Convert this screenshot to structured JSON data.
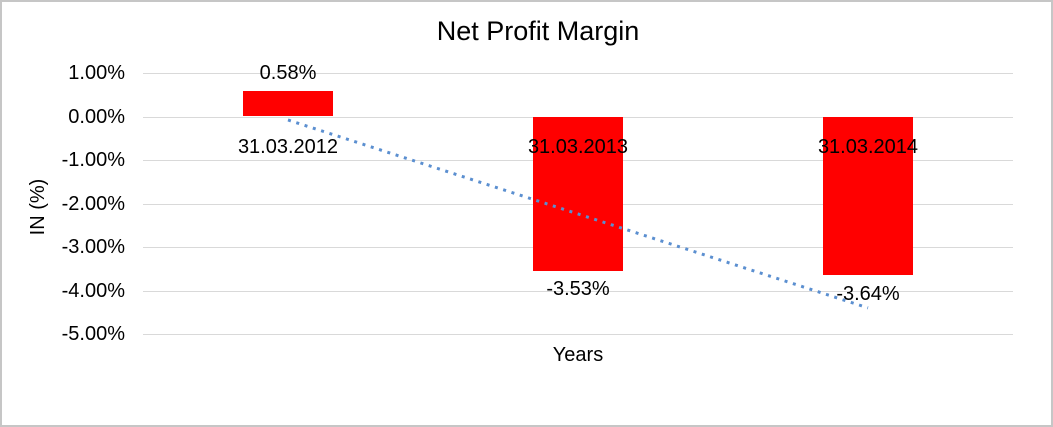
{
  "window": {
    "background": "#ffffff",
    "border_color": "#c6c6c6"
  },
  "chart_data": {
    "type": "bar",
    "title": "Net Profit Margin",
    "xlabel": "Years",
    "ylabel": "IN (%)",
    "categories": [
      "31.03.2012",
      "31.03.2013",
      "31.03.2014"
    ],
    "series": [
      {
        "name": "Net Profit Margin",
        "values": [
          0.58,
          -3.53,
          -3.64
        ]
      }
    ],
    "data_labels": [
      "0.58%",
      "-3.53%",
      "-3.64%"
    ],
    "yticks": [
      1,
      0,
      -1,
      -2,
      -3,
      -4,
      -5
    ],
    "ytick_labels": [
      "1.00%",
      "0.00%",
      "-1.00%",
      "-2.00%",
      "-3.00%",
      "-4.00%",
      "-5.00%"
    ],
    "ylim": [
      -5,
      1
    ],
    "grid": true,
    "legend": "none",
    "bar_color": "#FF0000",
    "gridline_color": "#D9D9D9",
    "text_color": "#000000",
    "trendline": {
      "type": "linear",
      "style": "dotted",
      "color": "#5B8FD0",
      "start_value": -0.08,
      "end_value": -4.4
    }
  }
}
